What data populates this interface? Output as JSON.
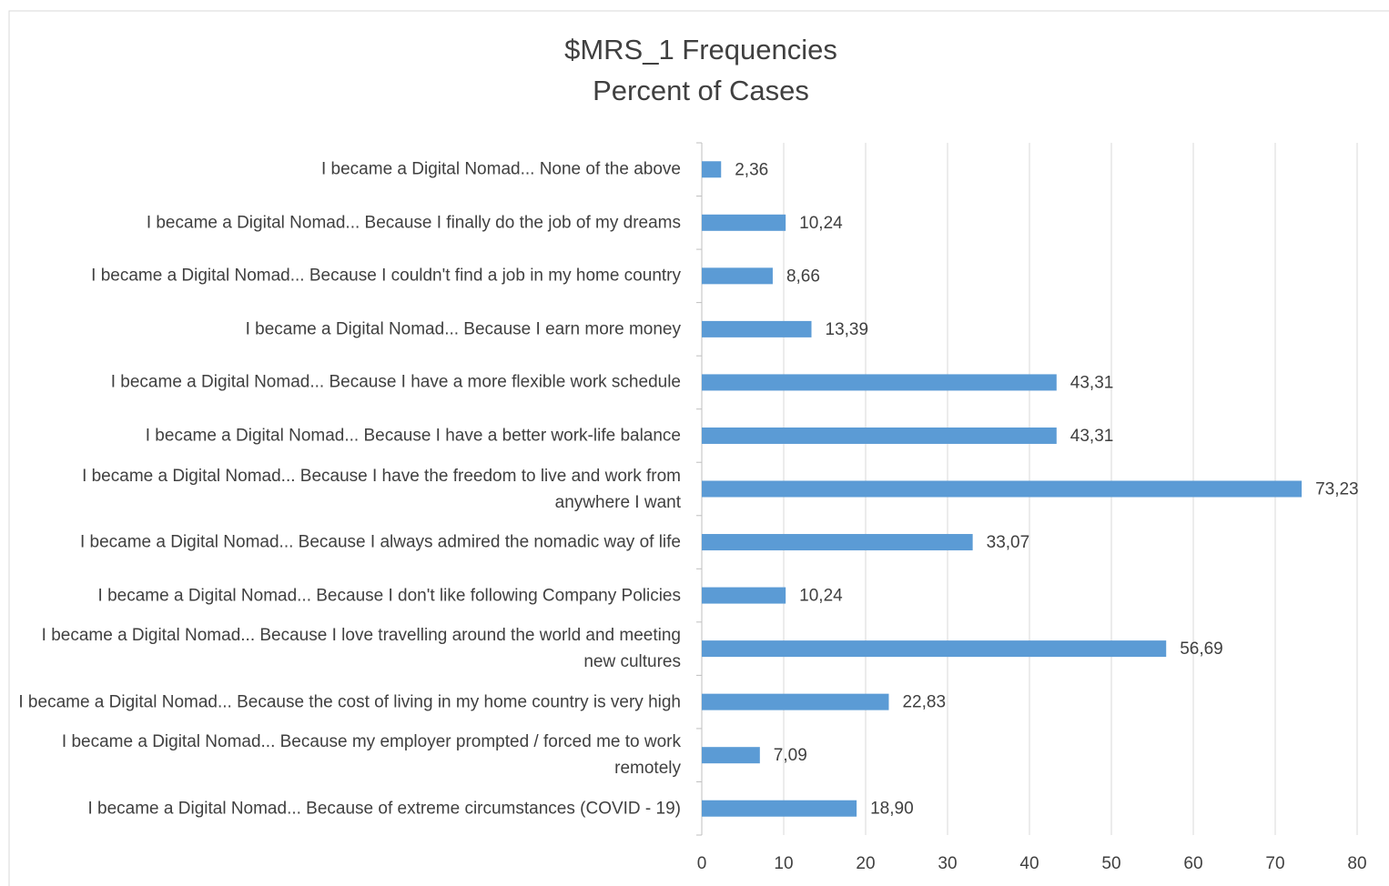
{
  "chart_data": {
    "type": "bar",
    "orientation": "horizontal",
    "title": "$MRS_1 Frequencies",
    "subtitle": "Percent of Cases",
    "categories": [
      "I became a Digital Nomad... None of the above",
      "I became a Digital Nomad... Because I finally do the job of my dreams",
      "I became a Digital Nomad... Because I couldn't find a job in my home country",
      "I became a Digital Nomad... Because I earn more money",
      "I became a Digital Nomad... Because I have a more flexible work schedule",
      "I became a Digital Nomad... Because I have a better work-life balance",
      "I became a Digital Nomad... Because I have the freedom to live and work from anywhere I want",
      "I became a Digital Nomad... Because I always admired the nomadic way of life",
      "I became a Digital Nomad... Because I don't like following Company Policies",
      "I became a Digital Nomad... Because I love travelling around the world and meeting new cultures",
      "I became a Digital Nomad... Because the cost of living in my home country is very high",
      "I became a Digital Nomad... Because my employer prompted / forced me to work remotely",
      "I became a Digital Nomad... Because of extreme circumstances (COVID - 19)"
    ],
    "values": [
      2.36,
      10.24,
      8.66,
      13.39,
      43.31,
      43.31,
      73.23,
      33.07,
      10.24,
      56.69,
      22.83,
      7.09,
      18.9
    ],
    "value_labels": [
      "2,36",
      "10,24",
      "8,66",
      "13,39",
      "43,31",
      "43,31",
      "73,23",
      "33,07",
      "10,24",
      "56,69",
      "22,83",
      "7,09",
      "18,90"
    ],
    "color": "#5b9bd5",
    "xlim": [
      0,
      80
    ],
    "xticks": [
      0,
      10,
      20,
      30,
      40,
      50,
      60,
      70,
      80
    ],
    "grid": true
  }
}
